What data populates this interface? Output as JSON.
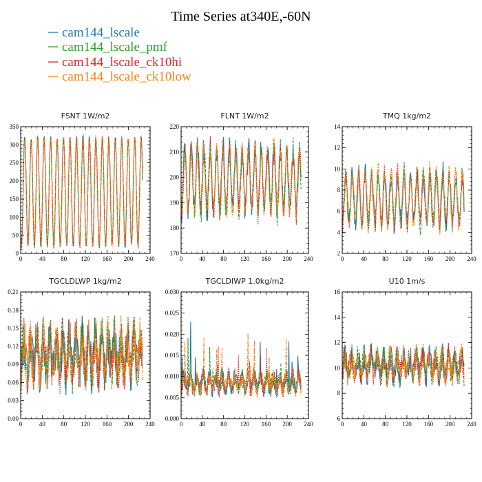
{
  "figure": {
    "title": "Time Series at340E,-60N"
  },
  "legend": [
    {
      "name": "cam144_lscale",
      "color": "#1f77b4",
      "dash": "solid"
    },
    {
      "name": "cam144_lscale_pmf",
      "color": "#2ca02c",
      "dash": "dashed"
    },
    {
      "name": "cam144_lscale_ck10hi",
      "color": "#d62728",
      "dash": "dotted"
    },
    {
      "name": "cam144_lscale_ck10low",
      "color": "#ff7f0e",
      "dash": "dashdot"
    }
  ],
  "chart_data": [
    {
      "type": "line",
      "title": "FSNT 1W/m2",
      "xlim": [
        0,
        240
      ],
      "ylim": [
        0,
        350
      ],
      "xticks": [
        0,
        40,
        80,
        120,
        160,
        200,
        240
      ],
      "yticks": [
        0,
        50,
        100,
        150,
        200,
        250,
        300,
        350
      ],
      "ytick_labels": [
        "0",
        "50",
        "100",
        "150",
        "200",
        "250",
        "300",
        "350"
      ],
      "x_range": [
        0,
        226
      ],
      "approx_baseline": 170,
      "approx_amplitude": 150,
      "approx_period": 12,
      "series": [
        "cam144_lscale",
        "cam144_lscale_pmf",
        "cam144_lscale_ck10hi",
        "cam144_lscale_ck10low"
      ]
    },
    {
      "type": "line",
      "title": "FLNT 1W/m2",
      "xlim": [
        0,
        240
      ],
      "ylim": [
        170,
        220
      ],
      "xticks": [
        0,
        40,
        80,
        120,
        160,
        200,
        240
      ],
      "yticks": [
        170,
        180,
        190,
        200,
        210,
        220
      ],
      "ytick_labels": [
        "170",
        "180",
        "190",
        "200",
        "210",
        "220"
      ],
      "x_range": [
        0,
        226
      ],
      "approx_baseline": 199,
      "approx_amplitude": 14,
      "approx_period": 12,
      "series": [
        "cam144_lscale",
        "cam144_lscale_pmf",
        "cam144_lscale_ck10hi",
        "cam144_lscale_ck10low"
      ]
    },
    {
      "type": "line",
      "title": "TMQ 1kg/m2",
      "xlim": [
        0,
        240
      ],
      "ylim": [
        2,
        14
      ],
      "xticks": [
        0,
        40,
        80,
        120,
        160,
        200,
        240
      ],
      "yticks": [
        2,
        4,
        6,
        8,
        10,
        12,
        14
      ],
      "ytick_labels": [
        "2",
        "4",
        "6",
        "8",
        "10",
        "12",
        "14"
      ],
      "x_range": [
        0,
        226
      ],
      "approx_baseline": 7.2,
      "approx_amplitude": 2.7,
      "approx_period": 12,
      "series": [
        "cam144_lscale",
        "cam144_lscale_pmf",
        "cam144_lscale_ck10hi",
        "cam144_lscale_ck10low"
      ]
    },
    {
      "type": "line",
      "title": "TGCLDLWP 1kg/m2",
      "xlim": [
        0,
        240
      ],
      "ylim": [
        0,
        0.21
      ],
      "xticks": [
        0,
        40,
        80,
        120,
        160,
        200,
        240
      ],
      "yticks": [
        0,
        0.03,
        0.06,
        0.09,
        0.12,
        0.15,
        0.18,
        0.21
      ],
      "ytick_labels": [
        "0.00",
        "0.03",
        "0.06",
        "0.09",
        "0.12",
        "0.15",
        "0.18",
        "0.21"
      ],
      "x_range": [
        0,
        226
      ],
      "approx_baseline": 0.105,
      "approx_amplitude": 0.045,
      "approx_period": 12,
      "series": [
        "cam144_lscale",
        "cam144_lscale_pmf",
        "cam144_lscale_ck10hi",
        "cam144_lscale_ck10low"
      ]
    },
    {
      "type": "line",
      "title": "TGCLDIWP 1.0kg/m2",
      "xlim": [
        0,
        240
      ],
      "ylim": [
        0,
        0.03
      ],
      "xticks": [
        0,
        40,
        80,
        120,
        160,
        200,
        240
      ],
      "yticks": [
        0,
        0.005,
        0.01,
        0.015,
        0.02,
        0.025,
        0.03
      ],
      "ytick_labels": [
        "0.000",
        "0.005",
        "0.010",
        "0.015",
        "0.020",
        "0.025",
        "0.030"
      ],
      "x_range": [
        0,
        226
      ],
      "approx_baseline": 0.0085,
      "approx_amplitude": 0.0025,
      "approx_period": 12,
      "series": [
        "cam144_lscale",
        "cam144_lscale_pmf",
        "cam144_lscale_ck10hi",
        "cam144_lscale_ck10low"
      ]
    },
    {
      "type": "line",
      "title": "U10 1m/s",
      "xlim": [
        0,
        240
      ],
      "ylim": [
        6,
        16
      ],
      "xticks": [
        0,
        40,
        80,
        120,
        160,
        200,
        240
      ],
      "yticks": [
        6,
        8,
        10,
        12,
        14,
        16
      ],
      "ytick_labels": [
        "6",
        "8",
        "10",
        "12",
        "14",
        "16"
      ],
      "x_range": [
        0,
        226
      ],
      "approx_baseline": 10.2,
      "approx_amplitude": 1.2,
      "approx_period": 12,
      "series": [
        "cam144_lscale",
        "cam144_lscale_pmf",
        "cam144_lscale_ck10hi",
        "cam144_lscale_ck10low"
      ]
    }
  ]
}
